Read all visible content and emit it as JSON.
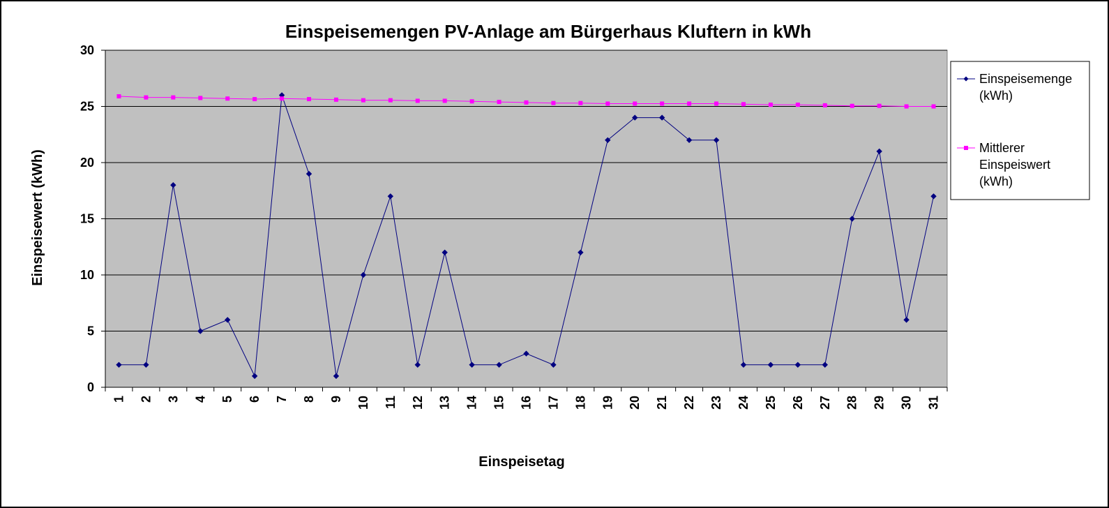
{
  "chart_data": {
    "type": "line",
    "title": "Einspeisemengen PV-Anlage am Bürgerhaus Kluftern in kWh",
    "xlabel": "Einspeisetag",
    "ylabel": "Einspeisewert (kWh)",
    "ylim": [
      0,
      30
    ],
    "yticks": [
      "0",
      "5",
      "10",
      "15",
      "20",
      "25",
      "30"
    ],
    "categories": [
      "1",
      "2",
      "3",
      "4",
      "5",
      "6",
      "7",
      "8",
      "9",
      "10",
      "11",
      "12",
      "13",
      "14",
      "15",
      "16",
      "17",
      "18",
      "19",
      "20",
      "21",
      "22",
      "23",
      "24",
      "25",
      "26",
      "27",
      "28",
      "29",
      "30",
      "31"
    ],
    "grid": true,
    "legend_position": "right",
    "plot_background": "#c0c0c0",
    "series": [
      {
        "name_lines": [
          "Einspeisemenge",
          "(kWh)"
        ],
        "color": "#000080",
        "marker": "diamond",
        "values": [
          2,
          2,
          18,
          5,
          6,
          1,
          26,
          19,
          1,
          10,
          17,
          2,
          12,
          2,
          2,
          3,
          2,
          12,
          22,
          24,
          24,
          22,
          22,
          2,
          2,
          2,
          2,
          15,
          21,
          6,
          17
        ]
      },
      {
        "name_lines": [
          "Mittlerer",
          "Einspeiswert",
          "(kWh)"
        ],
        "color": "#ff00ff",
        "marker": "square",
        "values": [
          25.9,
          25.8,
          25.8,
          25.75,
          25.7,
          25.65,
          25.7,
          25.65,
          25.6,
          25.55,
          25.55,
          25.5,
          25.5,
          25.45,
          25.4,
          25.35,
          25.3,
          25.3,
          25.25,
          25.25,
          25.25,
          25.25,
          25.25,
          25.2,
          25.15,
          25.15,
          25.1,
          25.05,
          25.05,
          25.0,
          25.0
        ]
      }
    ]
  }
}
